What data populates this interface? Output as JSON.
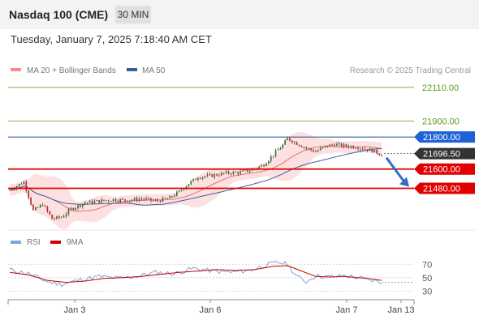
{
  "header": {
    "title": "Nasdaq 100 (CME)",
    "timeframe": "30 MIN",
    "datetime": "Tuesday, January 7, 2025 7:18:40 AM CET"
  },
  "legend": {
    "items": [
      {
        "label": "MA 20 + Bollinger Bands",
        "color": "#f08c8c"
      },
      {
        "label": "MA 50",
        "color": "#3a5fa0"
      }
    ],
    "credit": "Research © 2025 Trading Central"
  },
  "colors": {
    "up_candle": "#2e7d32",
    "down_candle": "#c62828",
    "bollinger_band": "#fcd5d5",
    "ma20": "#e57373",
    "ma50": "#3a5fa0",
    "target_line": "#7cb342",
    "resistance_line": "#3a5fa0",
    "support_line": "#e00000",
    "arrow": "#2f6fc0",
    "rsi": "#7aa4e0",
    "rsi_ma": "#d00000"
  },
  "chart_data": [
    {
      "type": "candlestick",
      "y_axis_position": "right",
      "ylim": [
        21260,
        22170
      ],
      "x_axis_ticks": [
        "Jan 3",
        "Jan 6",
        "Jan 7",
        "Jan 13"
      ],
      "series": [
        {
          "name": "MA 20 + Bollinger Bands",
          "type": "line+band"
        },
        {
          "name": "MA 50",
          "type": "line"
        }
      ],
      "price_levels": [
        {
          "label": "22110.00",
          "value": 22110,
          "kind": "target",
          "label_style": "text",
          "color": "#5a9a1a"
        },
        {
          "label": "21900.00",
          "value": 21900,
          "kind": "target",
          "label_style": "text",
          "color": "#5a9a1a"
        },
        {
          "label": "21800.00",
          "value": 21800,
          "kind": "resistance",
          "label_style": "tag",
          "color": "#1f62d8"
        },
        {
          "label": "21696.50",
          "value": 21696.5,
          "kind": "last",
          "label_style": "tag",
          "color": "#333333"
        },
        {
          "label": "21600.00",
          "value": 21600,
          "kind": "support",
          "label_style": "tag",
          "color": "#e00000"
        },
        {
          "label": "21480.00",
          "value": 21480,
          "kind": "support",
          "label_style": "tag",
          "color": "#e00000"
        }
      ],
      "price_path": [
        [
          0,
          21470
        ],
        [
          6,
          21520
        ],
        [
          10,
          21340
        ],
        [
          14,
          21380
        ],
        [
          18,
          21290
        ],
        [
          22,
          21300
        ],
        [
          26,
          21350
        ],
        [
          32,
          21390
        ],
        [
          38,
          21400
        ],
        [
          44,
          21410
        ],
        [
          50,
          21405
        ],
        [
          56,
          21415
        ],
        [
          62,
          21400
        ],
        [
          68,
          21420
        ],
        [
          72,
          21460
        ],
        [
          76,
          21510
        ],
        [
          80,
          21550
        ],
        [
          86,
          21560
        ],
        [
          92,
          21575
        ],
        [
          98,
          21580
        ],
        [
          104,
          21600
        ],
        [
          108,
          21630
        ],
        [
          112,
          21690
        ],
        [
          116,
          21750
        ],
        [
          118,
          21790
        ],
        [
          122,
          21760
        ],
        [
          126,
          21730
        ],
        [
          130,
          21710
        ],
        [
          134,
          21740
        ],
        [
          138,
          21755
        ],
        [
          142,
          21745
        ],
        [
          146,
          21740
        ],
        [
          150,
          21730
        ],
        [
          154,
          21715
        ],
        [
          158,
          21690
        ]
      ]
    },
    {
      "type": "line",
      "series": [
        {
          "name": "RSI"
        },
        {
          "name": "9MA"
        }
      ],
      "ylim": [
        22,
        80
      ],
      "y_ticks": [
        70,
        50,
        30
      ],
      "rsi_path": [
        [
          0,
          62
        ],
        [
          8,
          56
        ],
        [
          16,
          44
        ],
        [
          22,
          40
        ],
        [
          30,
          47
        ],
        [
          38,
          52
        ],
        [
          46,
          49
        ],
        [
          54,
          52
        ],
        [
          62,
          58
        ],
        [
          70,
          56
        ],
        [
          78,
          64
        ],
        [
          86,
          60
        ],
        [
          94,
          58
        ],
        [
          102,
          61
        ],
        [
          110,
          70
        ],
        [
          114,
          73
        ],
        [
          118,
          70
        ],
        [
          122,
          52
        ],
        [
          126,
          44
        ],
        [
          130,
          53
        ],
        [
          136,
          51
        ],
        [
          142,
          53
        ],
        [
          148,
          50
        ],
        [
          154,
          46
        ],
        [
          158,
          43
        ]
      ],
      "rsi_ma_path": [
        [
          0,
          58
        ],
        [
          8,
          54
        ],
        [
          16,
          46
        ],
        [
          24,
          43
        ],
        [
          32,
          45
        ],
        [
          40,
          49
        ],
        [
          48,
          50
        ],
        [
          56,
          52
        ],
        [
          64,
          55
        ],
        [
          72,
          58
        ],
        [
          80,
          60
        ],
        [
          88,
          62
        ],
        [
          96,
          61
        ],
        [
          104,
          62
        ],
        [
          112,
          67
        ],
        [
          118,
          68
        ],
        [
          124,
          60
        ],
        [
          130,
          52
        ],
        [
          136,
          51
        ],
        [
          142,
          52
        ],
        [
          148,
          50
        ],
        [
          154,
          48
        ],
        [
          158,
          46
        ]
      ],
      "rsi_projection": 43
    }
  ]
}
